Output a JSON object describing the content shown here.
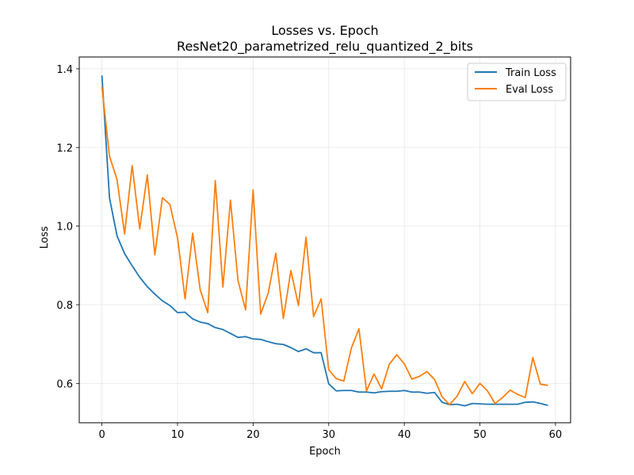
{
  "chart_data": {
    "type": "line",
    "title": "Losses vs. Epoch",
    "subtitle": "ResNet20_parametrized_relu_quantized_2_bits",
    "xlabel": "Epoch",
    "ylabel": "Loss",
    "xlim": [
      -3,
      62
    ],
    "ylim": [
      0.5,
      1.43
    ],
    "x_ticks": [
      0,
      10,
      20,
      30,
      40,
      50,
      60
    ],
    "y_ticks": [
      0.6,
      0.8,
      1.0,
      1.2,
      1.4
    ],
    "x_tick_labels": [
      "0",
      "10",
      "20",
      "30",
      "40",
      "50",
      "60"
    ],
    "y_tick_labels": [
      "0.6",
      "0.8",
      "1.0",
      "1.2",
      "1.4"
    ],
    "grid": true,
    "legend_position": "top-right",
    "x": [
      0,
      1,
      2,
      3,
      4,
      5,
      6,
      7,
      8,
      9,
      10,
      11,
      12,
      13,
      14,
      15,
      16,
      17,
      18,
      19,
      20,
      21,
      22,
      23,
      24,
      25,
      26,
      27,
      28,
      29,
      30,
      31,
      32,
      33,
      34,
      35,
      36,
      37,
      38,
      39,
      40,
      41,
      42,
      43,
      44,
      45,
      46,
      47,
      48,
      49,
      50,
      51,
      52,
      53,
      54,
      55,
      56,
      57,
      58,
      59
    ],
    "series": [
      {
        "name": "Train Loss",
        "color": "#1f77b4",
        "values": [
          1.383,
          1.072,
          0.975,
          0.93,
          0.899,
          0.87,
          0.846,
          0.827,
          0.81,
          0.798,
          0.78,
          0.781,
          0.764,
          0.756,
          0.752,
          0.742,
          0.737,
          0.727,
          0.717,
          0.719,
          0.713,
          0.712,
          0.706,
          0.701,
          0.699,
          0.691,
          0.681,
          0.688,
          0.678,
          0.678,
          0.599,
          0.581,
          0.582,
          0.582,
          0.578,
          0.578,
          0.576,
          0.579,
          0.58,
          0.58,
          0.582,
          0.578,
          0.578,
          0.575,
          0.577,
          0.552,
          0.546,
          0.547,
          0.543,
          0.549,
          0.548,
          0.547,
          0.547,
          0.547,
          0.547,
          0.547,
          0.552,
          0.553,
          0.549,
          0.544
        ]
      },
      {
        "name": "Eval Loss",
        "color": "#ff7f0e",
        "values": [
          1.354,
          1.178,
          1.118,
          0.98,
          1.154,
          0.993,
          1.13,
          0.927,
          1.072,
          1.055,
          0.97,
          0.815,
          0.982,
          0.838,
          0.78,
          1.116,
          0.845,
          1.066,
          0.862,
          0.787,
          1.092,
          0.776,
          0.83,
          0.931,
          0.765,
          0.887,
          0.798,
          0.972,
          0.77,
          0.815,
          0.635,
          0.612,
          0.606,
          0.69,
          0.739,
          0.581,
          0.624,
          0.586,
          0.648,
          0.673,
          0.65,
          0.611,
          0.618,
          0.63,
          0.61,
          0.566,
          0.546,
          0.568,
          0.605,
          0.574,
          0.6,
          0.581,
          0.549,
          0.564,
          0.583,
          0.572,
          0.564,
          0.666,
          0.598,
          0.595
        ]
      }
    ]
  }
}
